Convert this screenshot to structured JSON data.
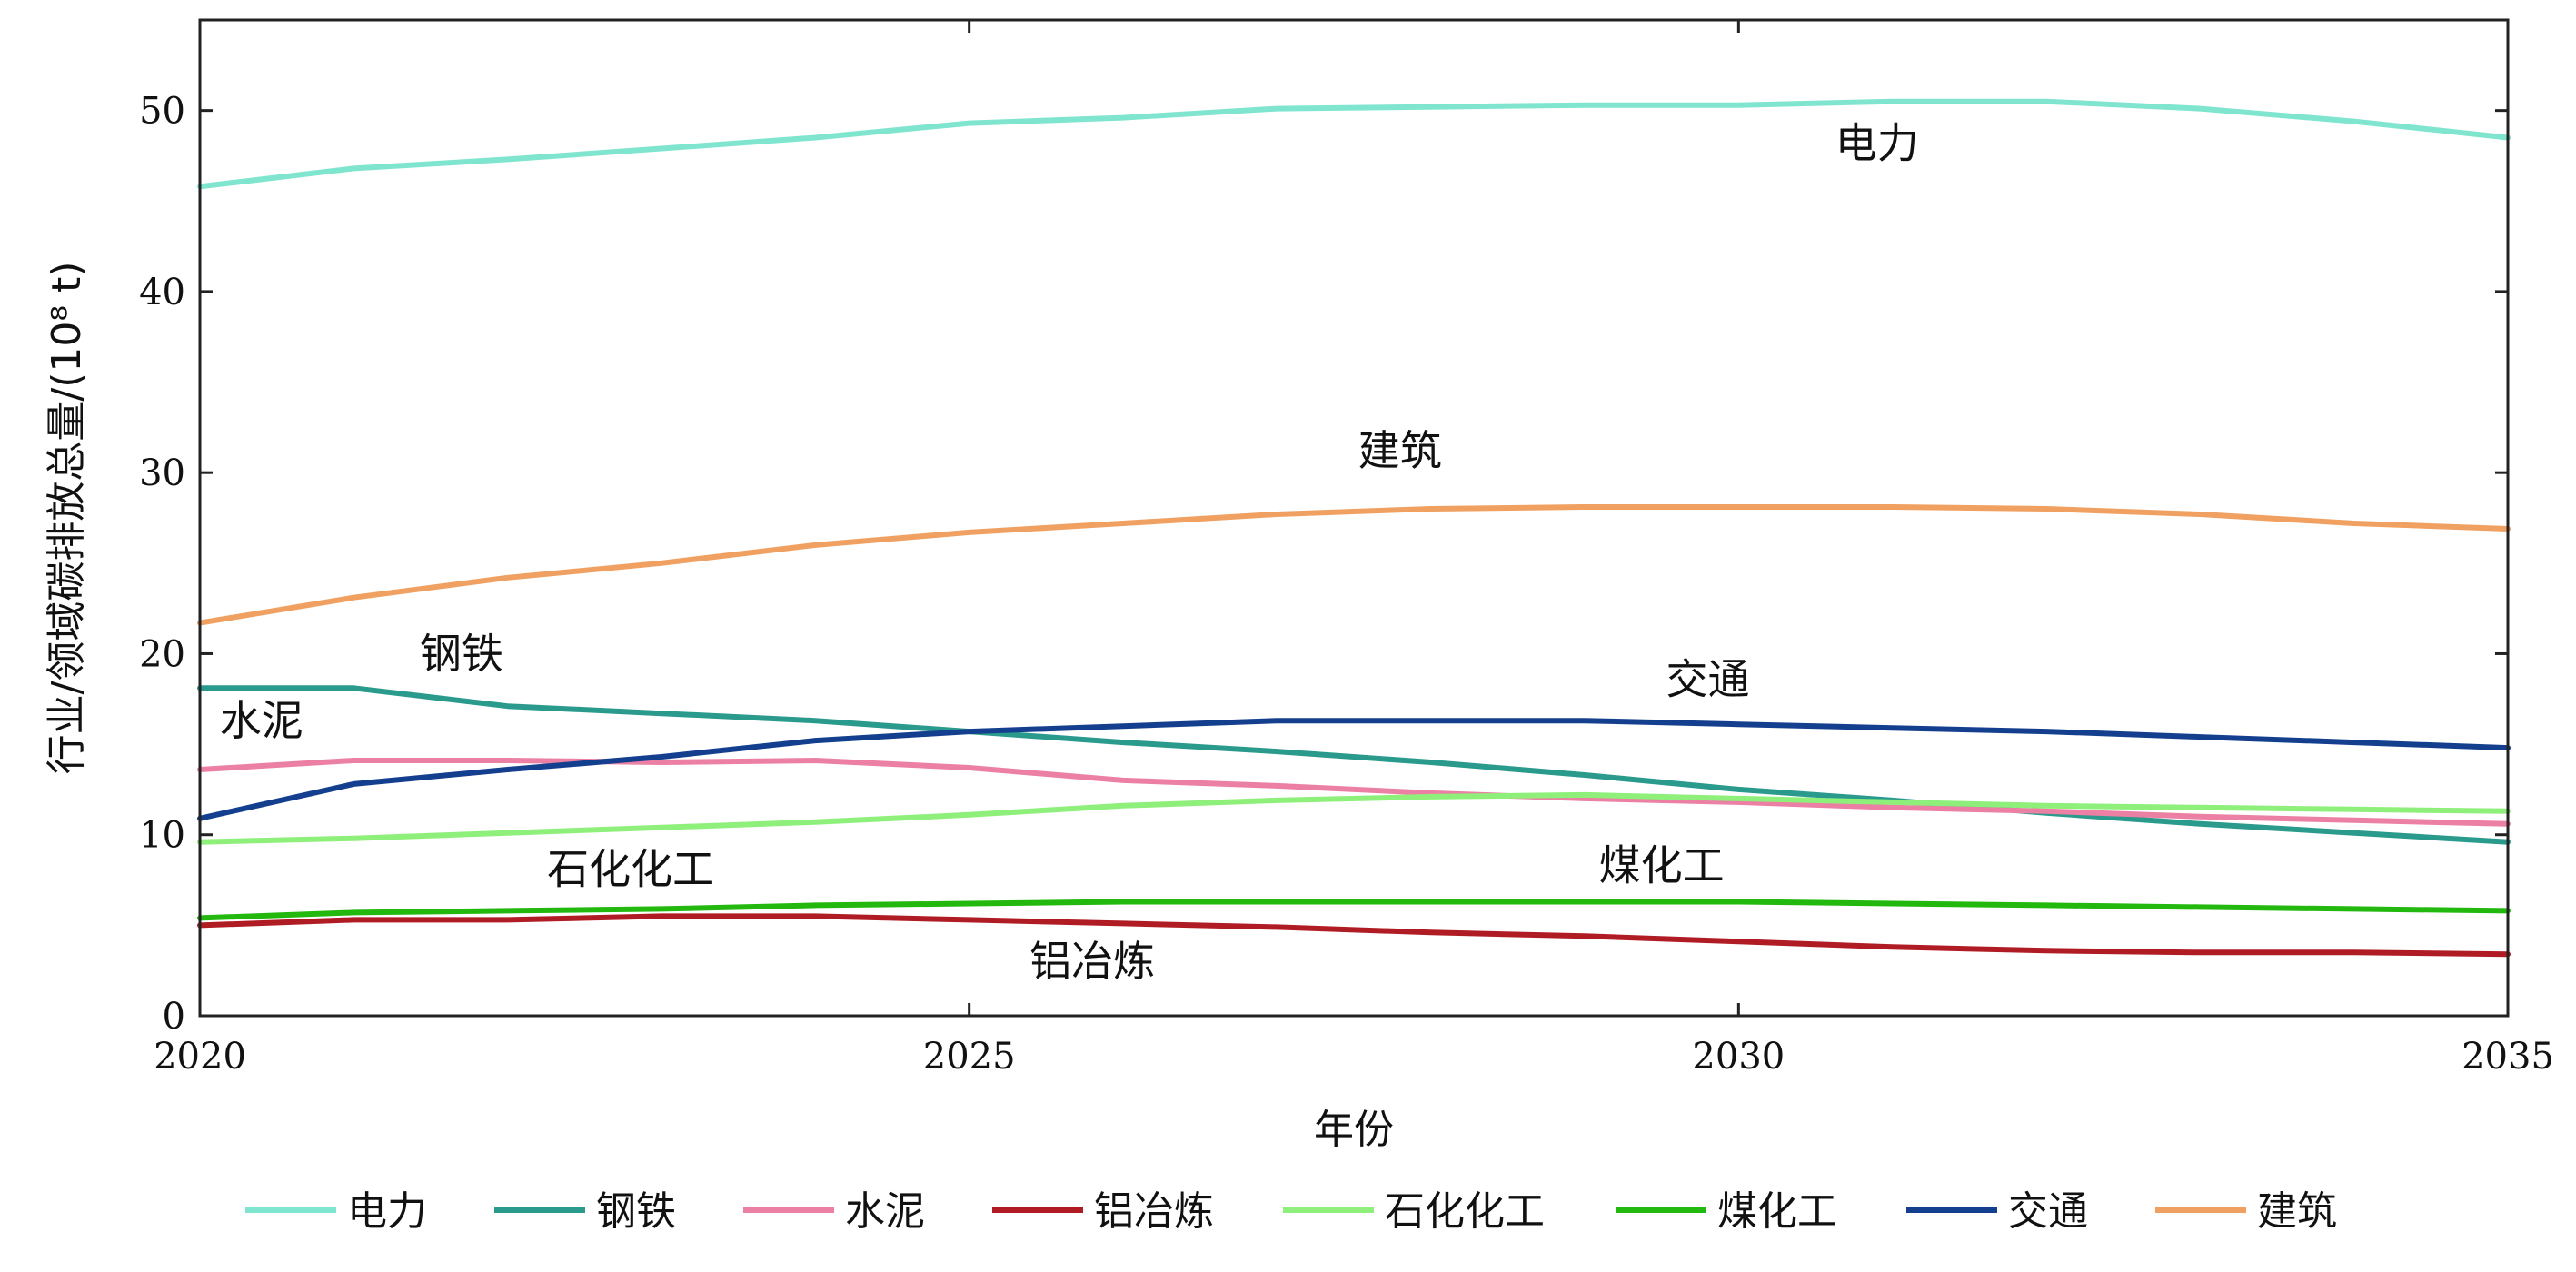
{
  "chart_data": {
    "type": "line",
    "xlabel": "年份",
    "ylabel": "行业/领域碳排放总量/(10⁸ t)",
    "xlim": [
      2020,
      2035
    ],
    "ylim": [
      0,
      55
    ],
    "x_ticks": [
      "2020",
      "2025",
      "2030",
      "2035"
    ],
    "y_ticks": [
      "0",
      "10",
      "20",
      "30",
      "40",
      "50"
    ],
    "grid": false,
    "legend_position": "bottom",
    "x": [
      2020,
      2021,
      2022,
      2023,
      2024,
      2025,
      2026,
      2027,
      2028,
      2029,
      2030,
      2031,
      2032,
      2033,
      2034,
      2035
    ],
    "series": [
      {
        "name": "电力",
        "color": "#7fe5cf",
        "values": [
          45.8,
          46.8,
          47.3,
          47.9,
          48.5,
          49.3,
          49.6,
          50.1,
          50.2,
          50.3,
          50.3,
          50.5,
          50.5,
          50.1,
          49.4,
          48.5
        ]
      },
      {
        "name": "钢铁",
        "color": "#2a9a8c",
        "values": [
          18.1,
          18.1,
          17.1,
          16.7,
          16.3,
          15.7,
          15.1,
          14.6,
          14.0,
          13.3,
          12.5,
          11.9,
          11.2,
          10.6,
          10.1,
          9.6
        ]
      },
      {
        "name": "水泥",
        "color": "#ec7fa4",
        "values": [
          13.6,
          14.1,
          14.1,
          14.0,
          14.1,
          13.7,
          13.0,
          12.7,
          12.3,
          12.0,
          11.8,
          11.5,
          11.3,
          11.0,
          10.8,
          10.6
        ]
      },
      {
        "name": "铝冶炼",
        "color": "#b01c24",
        "values": [
          5.0,
          5.3,
          5.3,
          5.5,
          5.5,
          5.3,
          5.1,
          4.9,
          4.6,
          4.4,
          4.1,
          3.8,
          3.6,
          3.5,
          3.5,
          3.4
        ]
      },
      {
        "name": "石化化工",
        "color": "#8ef07a",
        "values": [
          9.6,
          9.8,
          10.1,
          10.4,
          10.7,
          11.1,
          11.6,
          11.9,
          12.1,
          12.2,
          12.0,
          11.8,
          11.6,
          11.5,
          11.4,
          11.3
        ]
      },
      {
        "name": "煤化工",
        "color": "#22b80e",
        "values": [
          5.4,
          5.7,
          5.8,
          5.9,
          6.1,
          6.2,
          6.3,
          6.3,
          6.3,
          6.3,
          6.3,
          6.2,
          6.1,
          6.0,
          5.9,
          5.8
        ]
      },
      {
        "name": "交通",
        "color": "#143f8e",
        "values": [
          10.9,
          12.8,
          13.6,
          14.3,
          15.2,
          15.7,
          16.0,
          16.3,
          16.3,
          16.3,
          16.1,
          15.9,
          15.7,
          15.4,
          15.1,
          14.8
        ]
      },
      {
        "name": "建筑",
        "color": "#f0a060",
        "values": [
          21.7,
          23.1,
          24.2,
          25.0,
          26.0,
          26.7,
          27.2,
          27.7,
          28.0,
          28.1,
          28.1,
          28.1,
          28.0,
          27.7,
          27.2,
          26.9
        ]
      }
    ],
    "annotations": [
      {
        "text": "电力",
        "x": 2030.9,
        "y": 47.4
      },
      {
        "text": "建筑",
        "x": 2027.8,
        "y": 30.4
      },
      {
        "text": "钢铁",
        "x": 2021.7,
        "y": 19.2
      },
      {
        "text": "交通",
        "x": 2029.8,
        "y": 17.8
      },
      {
        "text": "水泥",
        "x": 2020.4,
        "y": 15.5
      },
      {
        "text": "石化化工",
        "x": 2022.8,
        "y": 7.3
      },
      {
        "text": "煤化工",
        "x": 2029.5,
        "y": 7.5
      },
      {
        "text": "铝冶炼",
        "x": 2025.8,
        "y": 2.2
      }
    ]
  }
}
